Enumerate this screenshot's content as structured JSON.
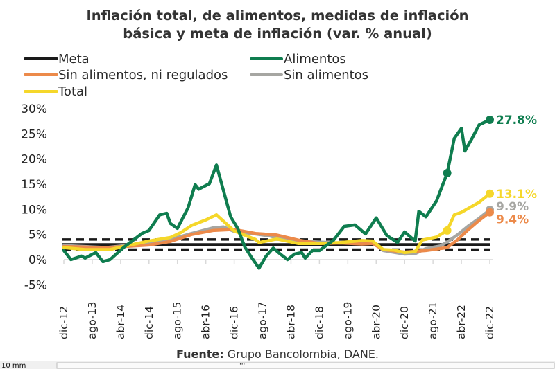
{
  "chart_data": {
    "type": "line",
    "title": [
      "Inflación total, de alimentos, medidas de inflación",
      "básica y meta de inflación (var. % anual)"
    ],
    "source_bold": "Fuente:",
    "source_text": " Grupo Bancolombia, DANE.",
    "yticks": [
      "30%",
      "25%",
      "20%",
      "15%",
      "10%",
      "5%",
      "0%",
      "-5%"
    ],
    "ylim": [
      -5,
      30
    ],
    "xlim": [
      "2012-12",
      "2022-12"
    ],
    "xticks": [
      {
        "date": "2012-12",
        "label": "dic-12"
      },
      {
        "date": "2013-08",
        "label": "ago-13"
      },
      {
        "date": "2014-04",
        "label": "abr-14"
      },
      {
        "date": "2014-12",
        "label": "dic-14"
      },
      {
        "date": "2015-08",
        "label": "ago-15"
      },
      {
        "date": "2016-04",
        "label": "abr-16"
      },
      {
        "date": "2016-12",
        "label": "dic-16"
      },
      {
        "date": "2017-08",
        "label": "ago-17"
      },
      {
        "date": "2018-04",
        "label": "abr-18"
      },
      {
        "date": "2018-12",
        "label": "dic-18"
      },
      {
        "date": "2019-08",
        "label": "ago-19"
      },
      {
        "date": "2020-04",
        "label": "abr-20"
      },
      {
        "date": "2020-12",
        "label": "dic-20"
      },
      {
        "date": "2021-08",
        "label": "ago-21"
      },
      {
        "date": "2022-04",
        "label": "abr-22"
      },
      {
        "date": "2022-12",
        "label": "dic-22"
      }
    ],
    "grid": false,
    "legend_placement": "top",
    "meta": {
      "name": "Meta",
      "target": 3,
      "range": [
        2,
        4
      ],
      "color": "#1a1a1a"
    },
    "series": [
      {
        "name": "Alimentos",
        "color": "#0f7d4f",
        "end_label": "27.8%",
        "markers": [
          "2021-12",
          "2022-12"
        ],
        "points": [
          [
            "2012-12",
            1.8
          ],
          [
            "2013-02",
            0
          ],
          [
            "2013-05",
            0.7
          ],
          [
            "2013-06",
            0.3
          ],
          [
            "2013-09",
            1.4
          ],
          [
            "2013-11",
            -0.4
          ],
          [
            "2014-01",
            0
          ],
          [
            "2014-05",
            2.5
          ],
          [
            "2014-10",
            5.2
          ],
          [
            "2014-12",
            5.8
          ],
          [
            "2015-03",
            8.9
          ],
          [
            "2015-05",
            9.2
          ],
          [
            "2015-06",
            7.2
          ],
          [
            "2015-08",
            6.2
          ],
          [
            "2015-11",
            10.3
          ],
          [
            "2016-01",
            14.9
          ],
          [
            "2016-02",
            14.0
          ],
          [
            "2016-05",
            15.1
          ],
          [
            "2016-07",
            18.8
          ],
          [
            "2016-11",
            8.5
          ],
          [
            "2017-01",
            6.2
          ],
          [
            "2017-03",
            2.5
          ],
          [
            "2017-05",
            0.3
          ],
          [
            "2017-07",
            -1.7
          ],
          [
            "2017-09",
            0.7
          ],
          [
            "2017-11",
            2.3
          ],
          [
            "2018-01",
            1.1
          ],
          [
            "2018-03",
            0
          ],
          [
            "2018-05",
            1.1
          ],
          [
            "2018-07",
            1.4
          ],
          [
            "2018-08",
            0.3
          ],
          [
            "2018-10",
            1.8
          ],
          [
            "2018-12",
            1.8
          ],
          [
            "2019-04",
            3.9
          ],
          [
            "2019-07",
            6.6
          ],
          [
            "2019-10",
            6.9
          ],
          [
            "2020-01",
            5.1
          ],
          [
            "2020-04",
            8.3
          ],
          [
            "2020-07",
            4.8
          ],
          [
            "2020-10",
            3.4
          ],
          [
            "2020-12",
            5.5
          ],
          [
            "2021-03",
            3.7
          ],
          [
            "2021-04",
            9.6
          ],
          [
            "2021-06",
            8.5
          ],
          [
            "2021-09",
            11.7
          ],
          [
            "2021-12",
            17.2
          ],
          [
            "2022-02",
            24.1
          ],
          [
            "2022-04",
            26.1
          ],
          [
            "2022-05",
            21.6
          ],
          [
            "2022-07",
            24.1
          ],
          [
            "2022-09",
            26.8
          ],
          [
            "2022-12",
            27.8
          ]
        ]
      },
      {
        "name": "Sin alimentos, ni regulados",
        "color": "#ec8a4a",
        "end_label": "9.4%",
        "markers": [
          "2022-12"
        ],
        "points": [
          [
            "2012-12",
            2.6
          ],
          [
            "2013-12",
            2.4
          ],
          [
            "2014-12",
            2.9
          ],
          [
            "2015-06",
            3.6
          ],
          [
            "2015-12",
            5.0
          ],
          [
            "2016-06",
            5.8
          ],
          [
            "2016-12",
            6.0
          ],
          [
            "2017-06",
            5.2
          ],
          [
            "2017-12",
            4.9
          ],
          [
            "2018-06",
            3.9
          ],
          [
            "2018-12",
            3.2
          ],
          [
            "2019-06",
            3.3
          ],
          [
            "2019-12",
            3.1
          ],
          [
            "2020-03",
            3.2
          ],
          [
            "2020-06",
            2.0
          ],
          [
            "2020-12",
            1.5
          ],
          [
            "2021-06",
            1.8
          ],
          [
            "2021-12",
            2.4
          ],
          [
            "2022-03",
            4.0
          ],
          [
            "2022-06",
            6.0
          ],
          [
            "2022-09",
            7.8
          ],
          [
            "2022-12",
            9.4
          ]
        ]
      },
      {
        "name": "Sin alimentos",
        "color": "#a6a6a2",
        "end_label": "9.9%",
        "markers": [
          "2022-12"
        ],
        "points": [
          [
            "2012-12",
            2.8
          ],
          [
            "2013-12",
            2.4
          ],
          [
            "2014-12",
            3.3
          ],
          [
            "2015-06",
            4.0
          ],
          [
            "2015-12",
            5.2
          ],
          [
            "2016-06",
            6.3
          ],
          [
            "2016-09",
            6.5
          ],
          [
            "2016-12",
            5.6
          ],
          [
            "2017-06",
            5.1
          ],
          [
            "2017-10",
            4.7
          ],
          [
            "2018-03",
            3.8
          ],
          [
            "2018-12",
            3.5
          ],
          [
            "2019-06",
            3.3
          ],
          [
            "2019-12",
            3.5
          ],
          [
            "2020-03",
            3.6
          ],
          [
            "2020-06",
            1.8
          ],
          [
            "2020-12",
            1.1
          ],
          [
            "2021-03",
            1.2
          ],
          [
            "2021-06",
            2.2
          ],
          [
            "2021-10",
            2.7
          ],
          [
            "2021-12",
            3.5
          ],
          [
            "2022-03",
            5.0
          ],
          [
            "2022-06",
            6.7
          ],
          [
            "2022-09",
            8.2
          ],
          [
            "2022-12",
            9.9
          ]
        ]
      },
      {
        "name": "Total",
        "color": "#f5d72a",
        "end_label": "13.1%",
        "markers": [
          "2021-12",
          "2022-12"
        ],
        "points": [
          [
            "2012-12",
            2.4
          ],
          [
            "2013-06",
            2.0
          ],
          [
            "2014-01",
            2.0
          ],
          [
            "2014-06",
            2.8
          ],
          [
            "2014-12",
            3.7
          ],
          [
            "2015-06",
            4.4
          ],
          [
            "2015-09",
            5.4
          ],
          [
            "2015-12",
            6.8
          ],
          [
            "2016-04",
            7.9
          ],
          [
            "2016-07",
            8.9
          ],
          [
            "2016-12",
            5.7
          ],
          [
            "2017-06",
            4.0
          ],
          [
            "2017-07",
            3.4
          ],
          [
            "2017-12",
            4.1
          ],
          [
            "2018-06",
            3.2
          ],
          [
            "2018-12",
            3.2
          ],
          [
            "2019-06",
            3.4
          ],
          [
            "2019-12",
            3.8
          ],
          [
            "2020-03",
            3.7
          ],
          [
            "2020-06",
            2.0
          ],
          [
            "2020-09",
            1.9
          ],
          [
            "2020-12",
            1.4
          ],
          [
            "2021-03",
            1.6
          ],
          [
            "2021-05",
            3.9
          ],
          [
            "2021-09",
            4.5
          ],
          [
            "2021-12",
            5.8
          ],
          [
            "2022-02",
            8.9
          ],
          [
            "2022-04",
            9.4
          ],
          [
            "2022-09",
            11.4
          ],
          [
            "2022-12",
            13.1
          ]
        ]
      }
    ]
  },
  "bottom_bar": {
    "ruler_label": "10 mm",
    "scroll_glyph": "'''"
  }
}
